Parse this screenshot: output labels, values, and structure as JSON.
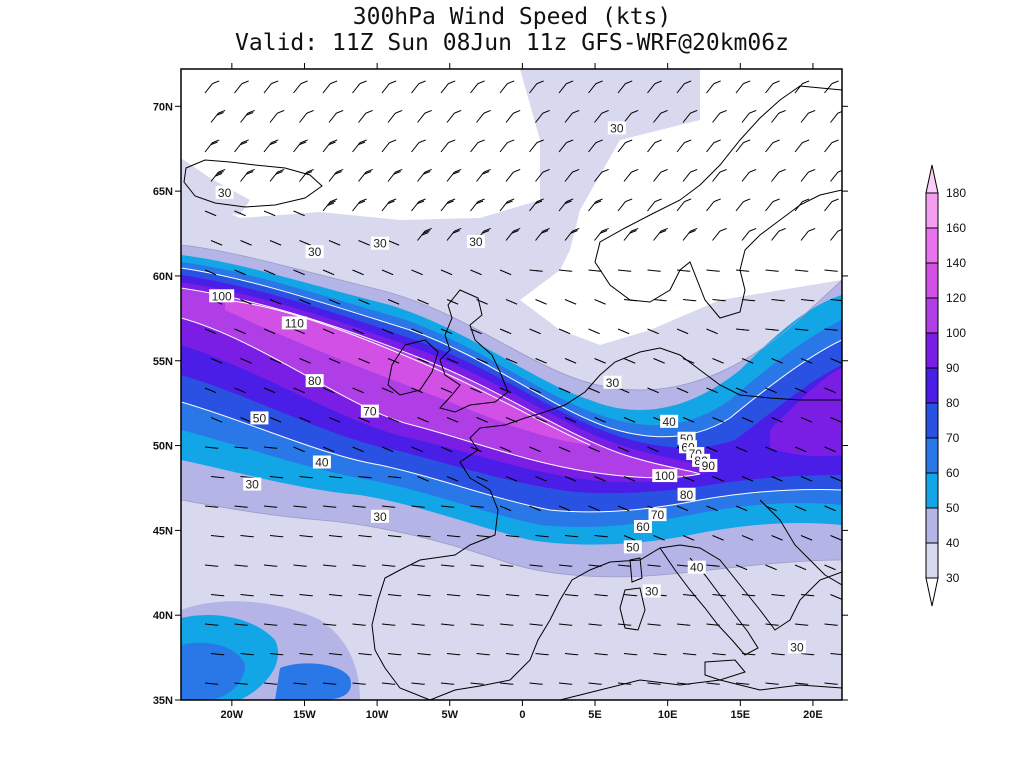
{
  "title_line1": "300hPa Wind Speed (kts)",
  "title_line2": "Valid: 11Z Sun 08Jun 11z GFS-WRF@20km06z",
  "map": {
    "lat_ticks": [
      "70N",
      "65N",
      "60N",
      "55N",
      "50N",
      "45N",
      "40N",
      "35N"
    ],
    "lon_ticks": [
      "20W",
      "15W",
      "10W",
      "5W",
      "0",
      "5E",
      "10E",
      "15E",
      "20E"
    ]
  },
  "colorbar": {
    "levels": [
      "30",
      "40",
      "50",
      "60",
      "70",
      "80",
      "90",
      "100",
      "120",
      "140",
      "160",
      "180"
    ],
    "colors": [
      "#d8d8ee",
      "#b4b4e6",
      "#12a6e6",
      "#2a78e8",
      "#2a52e2",
      "#4a1ee6",
      "#7a1ee6",
      "#b03ee6",
      "#d250e6",
      "#e873ec",
      "#f49ef2",
      "#fbd0f8"
    ]
  },
  "contour_labels": [
    {
      "text": "30",
      "lon": 6.5,
      "lat": 68.7
    },
    {
      "text": "30",
      "lon": -20.5,
      "lat": 64.9
    },
    {
      "text": "30",
      "lon": -14.3,
      "lat": 61.4
    },
    {
      "text": "30",
      "lon": -9.8,
      "lat": 61.9
    },
    {
      "text": "30",
      "lon": -3.2,
      "lat": 62.0
    },
    {
      "text": "100",
      "lon": -20.7,
      "lat": 58.8
    },
    {
      "text": "110",
      "lon": -15.7,
      "lat": 57.2
    },
    {
      "text": "80",
      "lon": -14.3,
      "lat": 53.8
    },
    {
      "text": "70",
      "lon": -10.5,
      "lat": 52.0
    },
    {
      "text": "50",
      "lon": -18.1,
      "lat": 51.6
    },
    {
      "text": "40",
      "lon": -13.8,
      "lat": 49.0
    },
    {
      "text": "30",
      "lon": -18.6,
      "lat": 47.7
    },
    {
      "text": "30",
      "lon": -9.8,
      "lat": 45.8
    },
    {
      "text": "30",
      "lon": 6.2,
      "lat": 53.7
    },
    {
      "text": "40",
      "lon": 10.1,
      "lat": 51.4
    },
    {
      "text": "50",
      "lon": 11.3,
      "lat": 50.4
    },
    {
      "text": "60",
      "lon": 11.4,
      "lat": 49.9
    },
    {
      "text": "70",
      "lon": 11.9,
      "lat": 49.5
    },
    {
      "text": "80",
      "lon": 12.3,
      "lat": 49.1
    },
    {
      "text": "90",
      "lon": 12.8,
      "lat": 48.8
    },
    {
      "text": "100",
      "lon": 9.8,
      "lat": 48.2
    },
    {
      "text": "80",
      "lon": 11.3,
      "lat": 47.1
    },
    {
      "text": "70",
      "lon": 9.3,
      "lat": 45.9
    },
    {
      "text": "60",
      "lon": 8.3,
      "lat": 45.2
    },
    {
      "text": "50",
      "lon": 7.6,
      "lat": 44.0
    },
    {
      "text": "40",
      "lon": 12.0,
      "lat": 42.8
    },
    {
      "text": "30",
      "lon": 8.9,
      "lat": 41.4
    },
    {
      "text": "30",
      "lon": 18.9,
      "lat": 38.1
    }
  ]
}
